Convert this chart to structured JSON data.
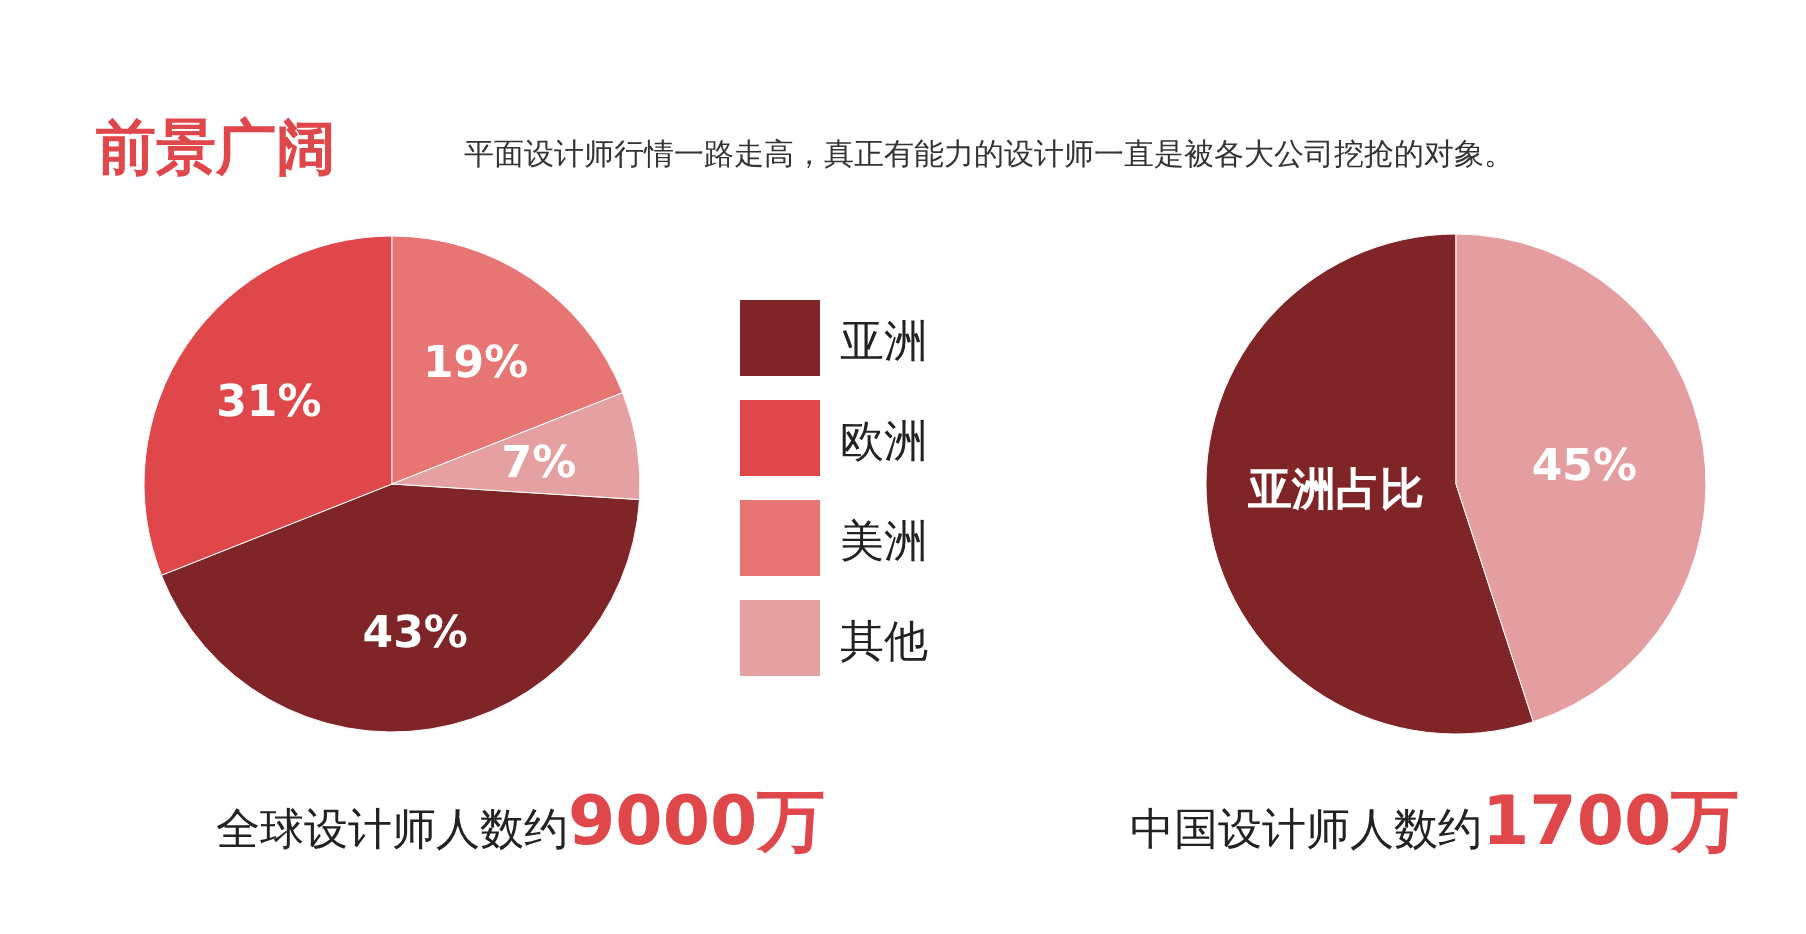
{
  "chart_data": [
    {
      "type": "pie",
      "title": "前景广阔",
      "subtitle": "平面设计师行情一路走高，真正有能力的设计师一直是被各大公司挖抢的对象。",
      "categories": [
        "亚洲",
        "欧洲",
        "美洲",
        "其他"
      ],
      "values": [
        43,
        31,
        19,
        7
      ],
      "colors": [
        "#7f2528",
        "#e0474b",
        "#e77573",
        "#e5a1a1"
      ],
      "value_labels": [
        "43%",
        "31%",
        "19%",
        "7%"
      ],
      "legend": "right",
      "annotations": [
        "全球设计师人数约",
        "9000万"
      ]
    },
    {
      "type": "pie",
      "categories": [
        "亚洲占比",
        null
      ],
      "values": [
        55,
        45
      ],
      "colors": [
        "#7f2528",
        "#e49e9f"
      ],
      "value_labels": [
        null,
        "45%"
      ],
      "annotations": [
        "中国设计师人数约",
        "1700万"
      ]
    }
  ]
}
